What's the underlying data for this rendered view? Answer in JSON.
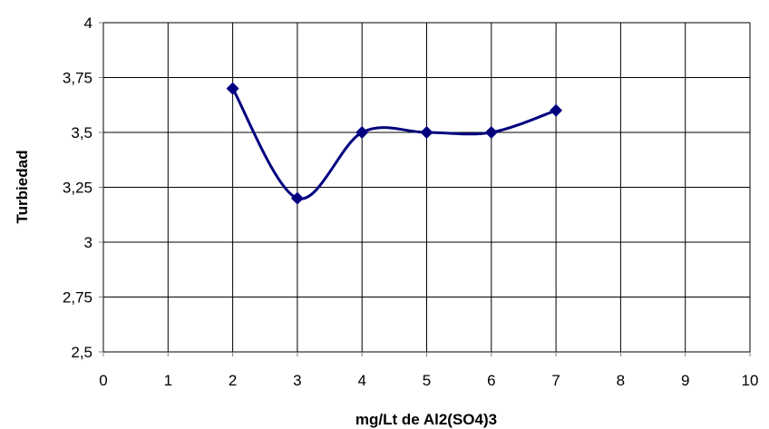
{
  "chart_data": {
    "type": "line",
    "title": "",
    "xlabel": "mg/Lt de Al2(SO4)3",
    "ylabel": "Turbiedad",
    "xlim": [
      0,
      10
    ],
    "ylim": [
      2.5,
      4
    ],
    "x_ticks": [
      "0",
      "1",
      "2",
      "3",
      "4",
      "5",
      "6",
      "7",
      "8",
      "9",
      "10"
    ],
    "y_ticks": [
      "2,5",
      "2,75",
      "3",
      "3,25",
      "3,5",
      "3,75",
      "4"
    ],
    "grid": true,
    "smoothed": true,
    "marker": "diamond",
    "series": [
      {
        "x": [
          2,
          3,
          4,
          5,
          6,
          7
        ],
        "y": [
          3.7,
          3.2,
          3.5,
          3.5,
          3.5,
          3.6
        ],
        "color": "#00007f"
      }
    ]
  }
}
